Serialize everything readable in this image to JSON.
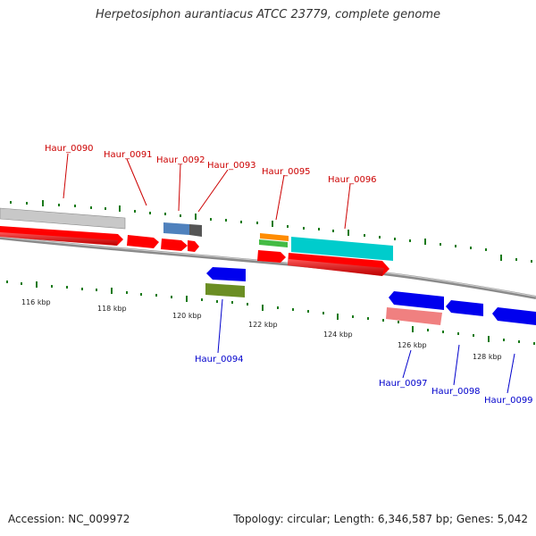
{
  "title": "Herpetosiphon aurantiacus ATCC 23779, complete genome",
  "footer": {
    "accession": "Accession: NC_009972",
    "summary": "Topology: circular; Length: 6,346,587 bp; Genes: 5,042"
  },
  "tick_labels": [
    "116 kbp",
    "118 kbp",
    "120 kbp",
    "122 kbp",
    "124 kbp",
    "126 kbp",
    "128 kbp"
  ],
  "gene_labels": [
    {
      "id": "g90",
      "text": "Haur_0090",
      "strand": "forward"
    },
    {
      "id": "g91",
      "text": "Haur_0091",
      "strand": "forward"
    },
    {
      "id": "g92",
      "text": "Haur_0092",
      "strand": "forward"
    },
    {
      "id": "g93",
      "text": "Haur_0093",
      "strand": "forward"
    },
    {
      "id": "g95",
      "text": "Haur_0095",
      "strand": "forward"
    },
    {
      "id": "g96",
      "text": "Haur_0096",
      "strand": "forward"
    },
    {
      "id": "g94",
      "text": "Haur_0094",
      "strand": "reverse"
    },
    {
      "id": "g97",
      "text": "Haur_0097",
      "strand": "reverse"
    },
    {
      "id": "g98",
      "text": "Haur_0098",
      "strand": "reverse"
    },
    {
      "id": "g99",
      "text": "Haur_0099",
      "strand": "reverse"
    }
  ],
  "colors": {
    "forward_label": "#cc0000",
    "reverse_label": "#0000cc",
    "tick": "#1a7a1a",
    "backbone": "#888888",
    "red_feature": "#ff0000",
    "blue_feature": "#0000ee",
    "grey_feature": "#c8c8c8",
    "steel_feature": "#4f81bd",
    "orange_feature": "#ff8c00",
    "green_feature": "#44bb44",
    "cyan_feature": "#00cccc",
    "olive_feature": "#6b8e23",
    "pink_feature": "#f08080"
  }
}
